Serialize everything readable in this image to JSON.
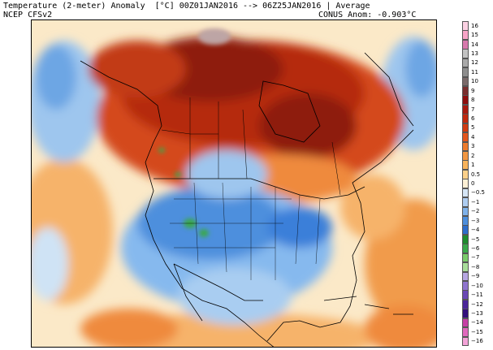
{
  "header": {
    "title": "Temperature (2-meter) Anomaly  [°C] 00Z01JAN2016 --> 06Z25JAN2016 | Average",
    "model": "NCEP CFSv2",
    "conus_anom": "CONUS Anom: -0.903°C"
  },
  "map": {
    "variable": "2-meter temperature anomaly",
    "units": "°C",
    "region": "North America",
    "colors": {
      "ocean_neutral": "#fbe9c8",
      "warm_light": "#f9c27a",
      "warm_mid": "#ef8a3d",
      "warm_dark": "#c23a18",
      "warm_darkest": "#6e1208",
      "peak_gray": "#bda5a5",
      "cold_light": "#cfe3f5",
      "cold_mid": "#7fb4ea",
      "cold_dark": "#3b7fd9",
      "cold_green": "#3aa84a",
      "borders": "#000000"
    }
  },
  "colorbar": {
    "labels": [
      "16",
      "15",
      "14",
      "13",
      "12",
      "11",
      "10",
      "9",
      "8",
      "7",
      "6",
      "5",
      "4",
      "3",
      "2",
      "1",
      "0.5",
      "0",
      "−0.5",
      "−1",
      "−2",
      "−3",
      "−4",
      "−5",
      "−6",
      "−7",
      "−8",
      "−9",
      "−10",
      "−11",
      "−12",
      "−13",
      "−14",
      "−15",
      "−16"
    ],
    "colors": [
      "#fbd1e3",
      "#f7a5c8",
      "#d779ad",
      "#c3c3c3",
      "#a9a9a9",
      "#8e8e8e",
      "#7a6a6a",
      "#7a2e2e",
      "#8e0e0e",
      "#a81a10",
      "#c0280e",
      "#d03a12",
      "#e2561e",
      "#ed7b2d",
      "#f29742",
      "#f8b35b",
      "#fbd08a",
      "#fdf0d5",
      "#d6e6f6",
      "#aecdf1",
      "#7fb2ea",
      "#4d8fdd",
      "#2e6dca",
      "#1e8b2e",
      "#3aa84a",
      "#7acb6b",
      "#a8dd9a",
      "#b7a7e2",
      "#9075cf",
      "#6a48b5",
      "#4b2699",
      "#320f7c",
      "#c53fa5",
      "#e068bd",
      "#f4a3d8"
    ]
  }
}
